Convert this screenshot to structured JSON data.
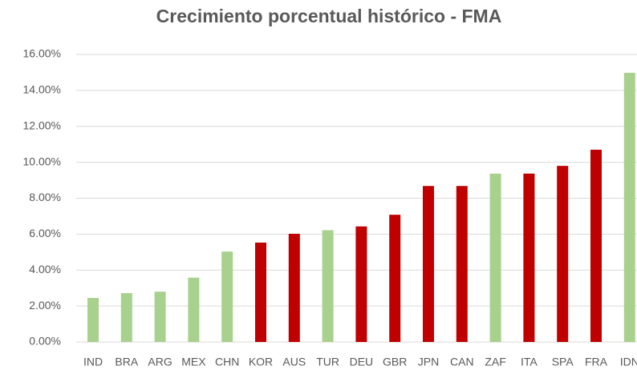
{
  "chart_data": {
    "type": "bar",
    "title": "Crecimiento porcentual histórico - FMA",
    "categories": [
      "IND",
      "BRA",
      "ARG",
      "MEX",
      "CHN",
      "KOR",
      "AUS",
      "TUR",
      "DEU",
      "GBR",
      "JPN",
      "CAN",
      "ZAF",
      "ITA",
      "SPA",
      "FRA",
      "IDN"
    ],
    "values": [
      2.45,
      2.72,
      2.8,
      3.58,
      5.03,
      5.53,
      6.02,
      6.22,
      6.43,
      7.08,
      8.68,
      8.68,
      9.37,
      9.37,
      9.8,
      10.7,
      14.98
    ],
    "colors": [
      "#a9d18e",
      "#a9d18e",
      "#a9d18e",
      "#a9d18e",
      "#a9d18e",
      "#c00000",
      "#c00000",
      "#a9d18e",
      "#c00000",
      "#c00000",
      "#c00000",
      "#c00000",
      "#a9d18e",
      "#c00000",
      "#c00000",
      "#c00000",
      "#a9d18e"
    ],
    "ylim": [
      0,
      16
    ],
    "yticks": [
      {
        "value": 0,
        "label": "0.00%"
      },
      {
        "value": 2,
        "label": "2.00%"
      },
      {
        "value": 4,
        "label": "4.00%"
      },
      {
        "value": 6,
        "label": "6.00%"
      },
      {
        "value": 8,
        "label": "8.00%"
      },
      {
        "value": 10,
        "label": "10.00%"
      },
      {
        "value": 12,
        "label": "12.00%"
      },
      {
        "value": 14,
        "label": "14.00%"
      },
      {
        "value": 16,
        "label": "16.00%"
      }
    ],
    "grid": true
  }
}
